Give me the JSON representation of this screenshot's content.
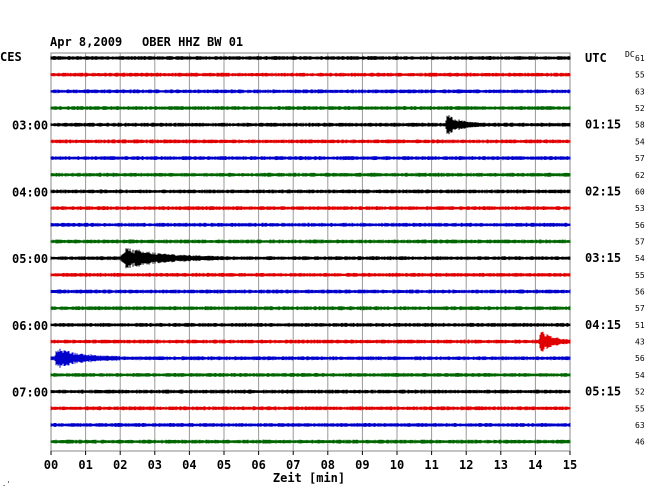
{
  "header": {
    "date": "Apr 8,2009",
    "station": "OBER HHZ BW 01",
    "left_timezone": "CES",
    "right_timezone": "UTC",
    "dc_label": "DC"
  },
  "chart_data": {
    "type": "helicorder",
    "title": "Apr 8,2009   OBER HHZ BW 01",
    "xlabel": "Zeit [min]",
    "xlim": [
      0,
      15
    ],
    "x_ticks": [
      "00",
      "01",
      "02",
      "03",
      "04",
      "05",
      "06",
      "07",
      "08",
      "09",
      "10",
      "11",
      "12",
      "13",
      "14",
      "15"
    ],
    "grid": true,
    "trace_colors": [
      "#000000",
      "#e00000",
      "#0000cc",
      "#006600"
    ],
    "left_time_labels": [
      {
        "row": 4,
        "label": "03:00"
      },
      {
        "row": 8,
        "label": "04:00"
      },
      {
        "row": 12,
        "label": "05:00"
      },
      {
        "row": 16,
        "label": "06:00"
      },
      {
        "row": 20,
        "label": "07:00"
      }
    ],
    "right_time_labels": [
      {
        "row": 0,
        "label": "UTC"
      },
      {
        "row": 4,
        "label": "01:15"
      },
      {
        "row": 8,
        "label": "02:15"
      },
      {
        "row": 12,
        "label": "03:15"
      },
      {
        "row": 16,
        "label": "04:15"
      },
      {
        "row": 20,
        "label": "05:15"
      }
    ],
    "dc_offsets": [
      "61",
      "55",
      "63",
      "52",
      "58",
      "54",
      "57",
      "62",
      "60",
      "53",
      "56",
      "57",
      "54",
      "55",
      "56",
      "57",
      "51",
      "43",
      "56",
      "54",
      "52",
      "55",
      "63",
      "46"
    ],
    "events": [
      {
        "row": 4,
        "start_min": 11.4,
        "end_min": 12.5,
        "amplitude": 8
      },
      {
        "row": 12,
        "start_min": 2.0,
        "end_min": 5.2,
        "amplitude": 8
      },
      {
        "row": 17,
        "start_min": 14.1,
        "end_min": 15.0,
        "amplitude": 10
      },
      {
        "row": 18,
        "start_min": 0.1,
        "end_min": 2.0,
        "amplitude": 9
      }
    ]
  }
}
